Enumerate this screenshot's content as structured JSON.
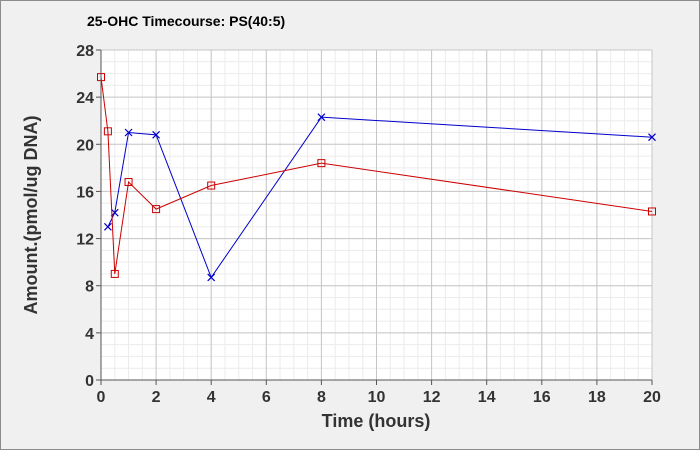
{
  "chart_data": {
    "type": "line",
    "title": "25-OHC Timecourse: PS(40:5)",
    "xlabel": "Time (hours)",
    "ylabel": "Amount.(pmol/ug DNA)",
    "xlim": [
      0,
      20
    ],
    "ylim": [
      0,
      28
    ],
    "xticks": [
      0,
      2,
      4,
      6,
      8,
      10,
      12,
      14,
      16,
      18,
      20
    ],
    "yticks": [
      0,
      4,
      8,
      12,
      16,
      20,
      24,
      28
    ],
    "grid": true,
    "series": [
      {
        "color": "#0000cc",
        "marker": "x",
        "x": [
          0.25,
          0.5,
          1,
          2,
          4,
          8,
          20
        ],
        "y": [
          13.0,
          14.2,
          21.0,
          20.8,
          8.7,
          22.3,
          20.6
        ]
      },
      {
        "color": "#cc0000",
        "marker": "square",
        "x": [
          0,
          0.25,
          0.5,
          1,
          2,
          4,
          8,
          20
        ],
        "y": [
          25.7,
          21.1,
          9.0,
          16.8,
          14.5,
          16.5,
          18.4,
          14.3
        ]
      }
    ]
  }
}
